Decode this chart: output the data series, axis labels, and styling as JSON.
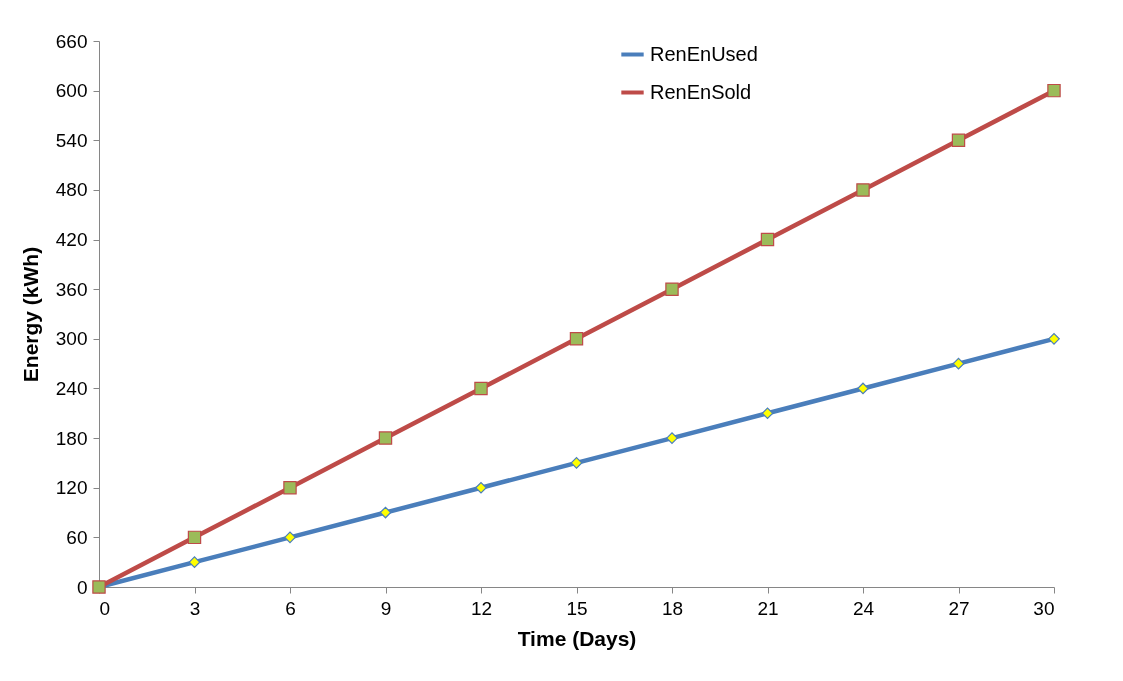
{
  "chart_data": {
    "type": "line",
    "xlabel": "Time (Days)",
    "ylabel": "Energy (kWh)",
    "x": [
      0,
      3,
      6,
      9,
      12,
      15,
      18,
      21,
      24,
      27,
      30
    ],
    "series": [
      {
        "name": "RenEnUsed",
        "color": "#4a7ebb",
        "marker": "diamond",
        "values": [
          0,
          30,
          60,
          90,
          120,
          150,
          180,
          210,
          240,
          270,
          300
        ]
      },
      {
        "name": "RenEnSold",
        "color": "#be4b48",
        "marker": "square",
        "values": [
          0,
          60,
          120,
          180,
          240,
          300,
          360,
          420,
          480,
          540,
          600
        ]
      }
    ],
    "xlim": [
      0,
      30
    ],
    "xticks": [
      0,
      3,
      6,
      9,
      12,
      15,
      18,
      21,
      24,
      27,
      30
    ],
    "ylim": [
      0,
      660
    ],
    "yticks": [
      0,
      60,
      120,
      180,
      240,
      300,
      360,
      420,
      480,
      540,
      600,
      660
    ],
    "grid": false,
    "legend": "top right"
  }
}
